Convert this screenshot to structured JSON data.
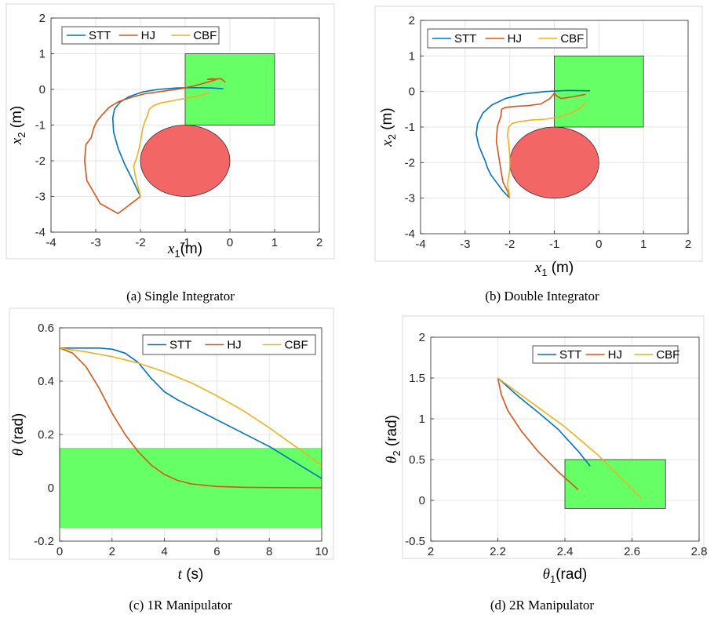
{
  "colors": {
    "STT": "#0072BD",
    "HJ": "#D95319",
    "CBF": "#EDB120",
    "goal": "#66FF66",
    "obstacle": "#F26666",
    "grid": "#E6E6E6"
  },
  "chart_data": [
    {
      "type": "line",
      "caption": "(a) Single Integrator",
      "xlabel": {
        "main": "x",
        "sub": "1",
        "unit": "(m)"
      },
      "ylabel": {
        "main": "x",
        "sub": "2",
        "unit": " (m)"
      },
      "xlim": [
        -4,
        2
      ],
      "ylim": [
        -4,
        2
      ],
      "xticks": [
        "-4",
        "-3",
        "-2",
        "-1",
        "0",
        "1",
        "2"
      ],
      "yticks": [
        "-4",
        "-3",
        "-2",
        "-1",
        "0",
        "1",
        "2"
      ],
      "grid": true,
      "legend": {
        "position": "top-left",
        "entries": [
          "STT",
          "HJ",
          "CBF"
        ]
      },
      "regions": [
        {
          "kind": "rect",
          "color": "goal",
          "x": [
            -1,
            1
          ],
          "y": [
            -1,
            1
          ]
        },
        {
          "kind": "ellipse",
          "color": "obstacle",
          "cx": -1,
          "cy": -2,
          "rx": 1,
          "ry": 1
        }
      ],
      "series": [
        {
          "name": "STT",
          "x": [
            -2.0,
            -2.15,
            -2.35,
            -2.5,
            -2.6,
            -2.62,
            -2.58,
            -2.45,
            -2.25,
            -1.95,
            -1.6,
            -1.2,
            -0.8,
            -0.4,
            -0.15
          ],
          "y": [
            -3.0,
            -2.6,
            -2.1,
            -1.65,
            -1.2,
            -0.8,
            -0.55,
            -0.35,
            -0.2,
            -0.07,
            0.0,
            0.04,
            0.05,
            0.04,
            0.02
          ]
        },
        {
          "name": "HJ",
          "x": [
            -2.0,
            -2.5,
            -2.9,
            -3.2,
            -3.25,
            -3.22,
            -3.1,
            -3.05,
            -2.98,
            -2.85,
            -2.7,
            -2.5,
            -2.2,
            -1.9,
            -1.5,
            -1.1,
            -0.8,
            -0.5,
            -0.35,
            -0.3,
            -0.4,
            -0.5,
            -0.2,
            -0.1
          ],
          "y": [
            -3.0,
            -3.48,
            -3.2,
            -2.55,
            -2.0,
            -1.55,
            -1.35,
            -1.1,
            -0.9,
            -0.7,
            -0.5,
            -0.35,
            -0.22,
            -0.12,
            -0.05,
            0.02,
            0.1,
            0.2,
            0.26,
            0.28,
            0.3,
            0.28,
            0.3,
            0.2
          ]
        },
        {
          "name": "CBF",
          "x": [
            -2.0,
            -2.05,
            -2.12,
            -2.15,
            -2.08,
            -2.02,
            -1.98,
            -1.95,
            -1.9,
            -1.85,
            -1.8,
            -1.7,
            -1.55,
            -1.3,
            -1.0,
            -0.7,
            -0.45
          ],
          "y": [
            -3.0,
            -2.75,
            -2.4,
            -2.15,
            -1.9,
            -1.6,
            -1.35,
            -1.1,
            -0.9,
            -0.75,
            -0.55,
            -0.45,
            -0.38,
            -0.32,
            -0.25,
            -0.18,
            -0.1
          ]
        }
      ]
    },
    {
      "type": "line",
      "caption": "(b) Double Integrator",
      "xlabel": {
        "main": "x",
        "sub": "1",
        "unit": " (m)"
      },
      "ylabel": {
        "main": "x",
        "sub": "2",
        "unit": " (m)"
      },
      "xlim": [
        -4,
        2
      ],
      "ylim": [
        -4,
        2
      ],
      "xticks": [
        "-4",
        "-3",
        "-2",
        "-1",
        "0",
        "1",
        "2"
      ],
      "yticks": [
        "-4",
        "-3",
        "-2",
        "-1",
        "0",
        "1",
        "2"
      ],
      "grid": true,
      "legend": {
        "position": "top-left",
        "entries": [
          "STT",
          "HJ",
          "CBF"
        ]
      },
      "regions": [
        {
          "kind": "rect",
          "color": "goal",
          "x": [
            -1,
            1
          ],
          "y": [
            -1,
            1
          ]
        },
        {
          "kind": "ellipse",
          "color": "obstacle",
          "cx": -1,
          "cy": -2,
          "rx": 1,
          "ry": 1
        }
      ],
      "series": [
        {
          "name": "STT",
          "x": [
            -2.0,
            -2.15,
            -2.3,
            -2.42,
            -2.5,
            -2.55,
            -2.62,
            -2.7,
            -2.75,
            -2.72,
            -2.6,
            -2.4,
            -2.1,
            -1.7,
            -1.2,
            -0.7,
            -0.2
          ],
          "y": [
            -3.0,
            -2.8,
            -2.55,
            -2.35,
            -2.15,
            -1.95,
            -1.75,
            -1.5,
            -1.2,
            -0.9,
            -0.6,
            -0.38,
            -0.2,
            -0.07,
            0.0,
            0.03,
            0.02
          ]
        },
        {
          "name": "HJ",
          "x": [
            -2.0,
            -2.05,
            -2.15,
            -2.2,
            -2.25,
            -2.3,
            -2.28,
            -2.2,
            -2.18,
            -2.1,
            -1.9,
            -1.6,
            -1.3,
            -1.1,
            -1.0,
            -0.95,
            -0.85,
            -0.6,
            -0.3
          ],
          "y": [
            -3.0,
            -2.8,
            -2.55,
            -2.2,
            -1.8,
            -1.4,
            -1.0,
            -0.7,
            -0.5,
            -0.45,
            -0.42,
            -0.4,
            -0.35,
            -0.2,
            -0.05,
            -0.12,
            -0.2,
            -0.15,
            -0.08
          ]
        },
        {
          "name": "CBF",
          "x": [
            -2.0,
            -2.05,
            -2.0,
            -2.0,
            -2.02,
            -2.05,
            -2.02,
            -1.95,
            -1.8,
            -1.5,
            -1.2,
            -0.9,
            -0.6,
            -0.4,
            -0.3
          ],
          "y": [
            -3.0,
            -2.6,
            -2.2,
            -1.8,
            -1.5,
            -1.2,
            -1.0,
            -0.9,
            -0.85,
            -0.8,
            -0.78,
            -0.72,
            -0.6,
            -0.45,
            -0.3
          ]
        }
      ]
    },
    {
      "type": "line",
      "caption": "(c) 1R Manipulator",
      "xlabel": {
        "main": "t",
        "sub": "",
        "unit": " (s)"
      },
      "ylabel": {
        "main": "θ",
        "sub": "",
        "unit": " (rad)"
      },
      "xlim": [
        0,
        10
      ],
      "ylim": [
        -0.2,
        0.6
      ],
      "xticks": [
        "0",
        "2",
        "4",
        "6",
        "8",
        "10"
      ],
      "yticks": [
        "-0.2",
        "0",
        "0.2",
        "0.4",
        "0.6"
      ],
      "grid": true,
      "legend": {
        "position": "top-right",
        "entries": [
          "STT",
          "HJ",
          "CBF"
        ]
      },
      "regions": [
        {
          "kind": "rect",
          "color": "goal",
          "x": [
            0,
            10
          ],
          "y": [
            -0.15,
            0.15
          ]
        }
      ],
      "series": [
        {
          "name": "STT",
          "x": [
            0,
            1,
            1.5,
            2,
            2.5,
            3,
            3.5,
            4,
            4.5,
            5,
            6,
            7,
            8,
            9,
            10
          ],
          "y": [
            0.524,
            0.524,
            0.524,
            0.52,
            0.505,
            0.47,
            0.41,
            0.36,
            0.33,
            0.305,
            0.255,
            0.205,
            0.155,
            0.095,
            0.035
          ]
        },
        {
          "name": "HJ",
          "x": [
            0,
            0.5,
            1,
            1.5,
            2,
            2.5,
            3,
            3.5,
            4,
            4.5,
            5,
            6,
            7,
            8,
            10
          ],
          "y": [
            0.524,
            0.505,
            0.455,
            0.375,
            0.28,
            0.2,
            0.135,
            0.085,
            0.05,
            0.028,
            0.015,
            0.005,
            0.002,
            0.001,
            0.0
          ]
        },
        {
          "name": "CBF",
          "x": [
            0,
            1,
            2,
            3,
            4,
            5,
            6,
            7,
            8,
            9,
            10
          ],
          "y": [
            0.524,
            0.51,
            0.492,
            0.468,
            0.435,
            0.395,
            0.345,
            0.29,
            0.225,
            0.155,
            0.085
          ]
        }
      ]
    },
    {
      "type": "line",
      "caption": "(d) 2R Manipulator",
      "xlabel": {
        "main": "θ",
        "sub": "1",
        "unit": "(rad)"
      },
      "ylabel": {
        "main": "θ",
        "sub": "2",
        "unit": " (rad)"
      },
      "xlim": [
        2,
        2.8
      ],
      "ylim": [
        -0.5,
        2
      ],
      "xticks": [
        "2",
        "2.2",
        "2.4",
        "2.6",
        "2.8"
      ],
      "yticks": [
        "-0.5",
        "0",
        "0.5",
        "1",
        "1.5",
        "2"
      ],
      "grid": true,
      "legend": {
        "position": "top-right",
        "entries": [
          "STT",
          "HJ",
          "CBF"
        ]
      },
      "regions": [
        {
          "kind": "rect",
          "color": "goal",
          "x": [
            2.4,
            2.7
          ],
          "y": [
            -0.1,
            0.5
          ]
        }
      ],
      "series": [
        {
          "name": "STT",
          "x": [
            2.2,
            2.26,
            2.32,
            2.38,
            2.44,
            2.475
          ],
          "y": [
            1.5,
            1.28,
            1.08,
            0.87,
            0.6,
            0.42
          ]
        },
        {
          "name": "HJ",
          "x": [
            2.2,
            2.21,
            2.23,
            2.27,
            2.32,
            2.38,
            2.44
          ],
          "y": [
            1.5,
            1.3,
            1.1,
            0.85,
            0.6,
            0.35,
            0.13
          ]
        },
        {
          "name": "CBF",
          "x": [
            2.2,
            2.3,
            2.4,
            2.5,
            2.63
          ],
          "y": [
            1.5,
            1.2,
            0.9,
            0.55,
            0.02
          ]
        }
      ]
    }
  ]
}
